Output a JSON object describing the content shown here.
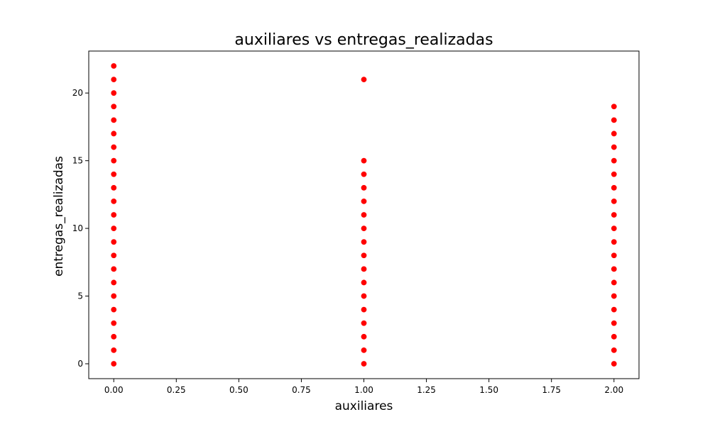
{
  "chart_data": {
    "type": "scatter",
    "title": "auxiliares vs entregas_realizadas",
    "xlabel": "auxiliares",
    "ylabel": "entregas_realizadas",
    "xlim": [
      -0.1,
      2.1
    ],
    "ylim": [
      -1.1,
      23.1
    ],
    "xticks": [
      0.0,
      0.25,
      0.5,
      0.75,
      1.0,
      1.25,
      1.5,
      1.75,
      2.0
    ],
    "xtick_labels": [
      "0.00",
      "0.25",
      "0.50",
      "0.75",
      "1.00",
      "1.25",
      "1.50",
      "1.75",
      "2.00"
    ],
    "yticks": [
      0,
      5,
      10,
      15,
      20
    ],
    "ytick_labels": [
      "0",
      "5",
      "10",
      "15",
      "20"
    ],
    "grid": false,
    "marker_color": "#ff0000",
    "series": [
      {
        "points": [
          [
            0,
            0
          ],
          [
            0,
            1
          ],
          [
            0,
            2
          ],
          [
            0,
            3
          ],
          [
            0,
            4
          ],
          [
            0,
            5
          ],
          [
            0,
            6
          ],
          [
            0,
            7
          ],
          [
            0,
            8
          ],
          [
            0,
            9
          ],
          [
            0,
            10
          ],
          [
            0,
            11
          ],
          [
            0,
            12
          ],
          [
            0,
            13
          ],
          [
            0,
            14
          ],
          [
            0,
            15
          ],
          [
            0,
            16
          ],
          [
            0,
            17
          ],
          [
            0,
            18
          ],
          [
            0,
            19
          ],
          [
            0,
            20
          ],
          [
            0,
            21
          ],
          [
            0,
            22
          ],
          [
            1,
            0
          ],
          [
            1,
            1
          ],
          [
            1,
            2
          ],
          [
            1,
            3
          ],
          [
            1,
            4
          ],
          [
            1,
            5
          ],
          [
            1,
            6
          ],
          [
            1,
            7
          ],
          [
            1,
            8
          ],
          [
            1,
            9
          ],
          [
            1,
            10
          ],
          [
            1,
            11
          ],
          [
            1,
            12
          ],
          [
            1,
            13
          ],
          [
            1,
            14
          ],
          [
            1,
            15
          ],
          [
            1,
            21
          ],
          [
            2,
            0
          ],
          [
            2,
            1
          ],
          [
            2,
            2
          ],
          [
            2,
            3
          ],
          [
            2,
            4
          ],
          [
            2,
            5
          ],
          [
            2,
            6
          ],
          [
            2,
            7
          ],
          [
            2,
            8
          ],
          [
            2,
            9
          ],
          [
            2,
            10
          ],
          [
            2,
            11
          ],
          [
            2,
            12
          ],
          [
            2,
            13
          ],
          [
            2,
            14
          ],
          [
            2,
            15
          ],
          [
            2,
            16
          ],
          [
            2,
            17
          ],
          [
            2,
            18
          ],
          [
            2,
            19
          ]
        ]
      }
    ]
  }
}
